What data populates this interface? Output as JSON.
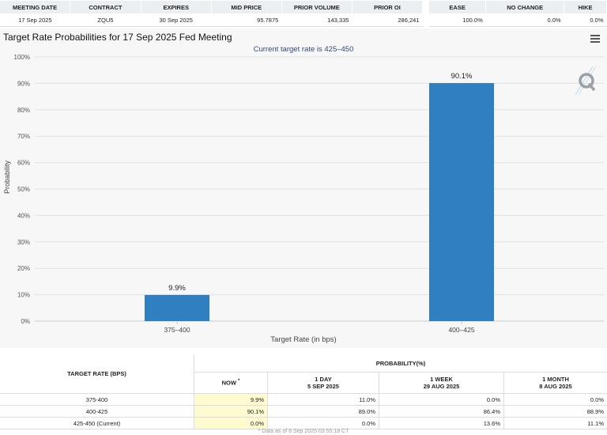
{
  "top_table": {
    "headers": [
      "MEETING DATE",
      "CONTRACT",
      "EXPIRES",
      "MID PRICE",
      "PRIOR VOLUME",
      "PRIOR OI"
    ],
    "row": [
      "17 Sep 2025",
      "ZQU5",
      "30 Sep 2025",
      "95.7875",
      "143,335",
      "286,241"
    ]
  },
  "side_table": {
    "headers": [
      "EASE",
      "NO CHANGE",
      "HIKE"
    ],
    "row": [
      "100.0%",
      "0.0%",
      "0.0%"
    ]
  },
  "chart_data": {
    "type": "bar",
    "title": "Target Rate Probabilities for 17 Sep 2025 Fed Meeting",
    "subtitle": "Current target rate is 425–450",
    "xlabel": "Target Rate (in bps)",
    "ylabel": "Probability",
    "categories": [
      "375–400",
      "400–425"
    ],
    "values": [
      9.9,
      90.1
    ],
    "data_labels": [
      "9.9%",
      "90.1%"
    ],
    "ylim": [
      0,
      100
    ],
    "yticks": [
      "0%",
      "10%",
      "20%",
      "30%",
      "40%",
      "50%",
      "60%",
      "70%",
      "80%",
      "90%",
      "100%"
    ],
    "bar_color": "#2f7fc1",
    "grid": true,
    "legend": "none"
  },
  "prob_table": {
    "target_header": "TARGET RATE (BPS)",
    "prob_header": "PROBABILITY(%)",
    "col_now": "NOW",
    "col_now_mark": "*",
    "col_1d": {
      "label": "1 DAY",
      "date": "5 SEP 2025"
    },
    "col_1w": {
      "label": "1 WEEK",
      "date": "29 AUG 2025"
    },
    "col_1m": {
      "label": "1 MONTH",
      "date": "8 AUG 2025"
    },
    "rows": [
      {
        "rate": "375-400",
        "now": "9.9%",
        "d1": "11.0%",
        "w1": "0.0%",
        "m1": "0.0%"
      },
      {
        "rate": "400-425",
        "now": "90.1%",
        "d1": "89.0%",
        "w1": "86.4%",
        "m1": "88.9%"
      },
      {
        "rate": "425-450 (Current)",
        "now": "0.0%",
        "d1": "0.0%",
        "w1": "13.6%",
        "m1": "11.1%"
      }
    ]
  },
  "footnote": "* Data as of 8 Sep 2025 03:55:18 CT",
  "icons": {
    "menu": "hamburger-menu-icon",
    "logo": "q-logo-icon"
  }
}
